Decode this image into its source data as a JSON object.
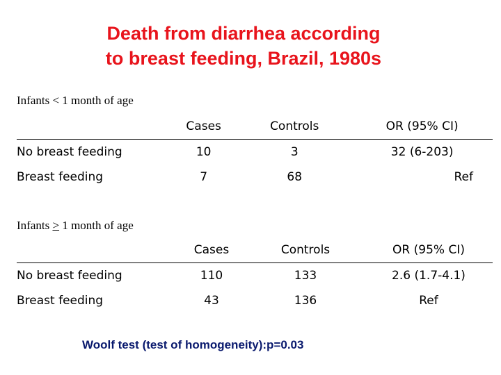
{
  "title": {
    "line1": "Death from diarrhea according",
    "line2": "to breast feeding, Brazil, 1980s"
  },
  "sections": [
    {
      "label": "Infants < 1 month of age",
      "headers": [
        "",
        "Cases",
        "Controls",
        "OR (95% CI)"
      ],
      "rows": [
        [
          "No breast feeding",
          "10",
          "3",
          "32 (6-203)"
        ],
        [
          "Breast feeding",
          "7",
          "68",
          "Ref"
        ]
      ]
    },
    {
      "label_prefix": "Infants ",
      "label_symbol": ">",
      "label_suffix": " 1 month of age",
      "headers": [
        "",
        "Cases",
        "Controls",
        "OR (95% CI)"
      ],
      "rows": [
        [
          "No breast feeding",
          "110",
          "133",
          "2.6 (1.7-4.1)"
        ],
        [
          "Breast feeding",
          "43",
          "136",
          "Ref"
        ]
      ]
    }
  ],
  "footer": "Woolf test (test of homogeneity):p=0.03",
  "colors": {
    "title": "#e8141c",
    "footer": "#0a1a6e"
  }
}
